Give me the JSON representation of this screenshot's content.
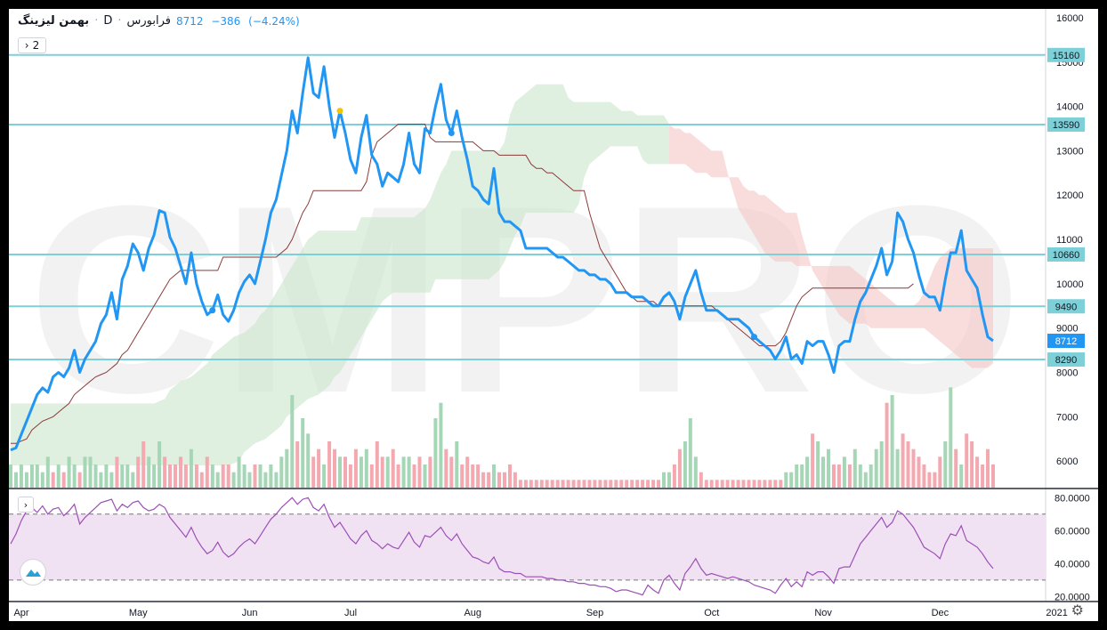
{
  "legend": {
    "symbol": "بهمن لیزینگ",
    "interval": "D",
    "exchange": "فرابورس",
    "last": "8712",
    "change": "−386",
    "change_pct": "(−4.24%)"
  },
  "collapse_button": "2",
  "watermark": "CMPRO",
  "colors": {
    "price": "#2196f3",
    "hline": "#7ed0d8",
    "kijun": "#8b3a3a",
    "cloud_bull": "#c9e6cc",
    "cloud_bear": "#f5c6c6",
    "vol_up": "#a5d6b5",
    "vol_down": "#f4a9b0",
    "rsi": "#9c4fb5",
    "rsi_band": "#f1e2f3"
  },
  "chart_data": [
    {
      "type": "line",
      "name": "price",
      "x_axis_labels": [
        "Apr",
        "May",
        "Jun",
        "Jul",
        "Aug",
        "Sep",
        "Oct",
        "Nov",
        "Dec",
        "2021"
      ],
      "x_axis_positions": [
        0,
        22,
        43,
        62,
        85,
        108,
        130,
        151,
        173,
        195
      ],
      "ylim": [
        5400,
        16200
      ],
      "yticks": [
        6000,
        7000,
        8000,
        9000,
        10000,
        11000,
        12000,
        13000,
        14000,
        15000,
        16000
      ],
      "price_labels": [
        "15160",
        "13590",
        "10660",
        "9490",
        "8712",
        "8290"
      ],
      "horizontal_levels": [
        15160,
        13590,
        10660,
        9490,
        8290
      ],
      "last_price": 8712,
      "series": [
        {
          "name": "close",
          "values": [
            6250,
            6300,
            6600,
            6900,
            7200,
            7500,
            7650,
            7550,
            7900,
            8000,
            7900,
            8100,
            8500,
            8000,
            8300,
            8500,
            8700,
            9100,
            9300,
            9800,
            9200,
            10100,
            10400,
            10900,
            10700,
            10300,
            10800,
            11100,
            11650,
            11600,
            11050,
            10800,
            10400,
            10000,
            10700,
            10000,
            9600,
            9300,
            9400,
            9750,
            9300,
            9150,
            9400,
            9800,
            10050,
            10200,
            10000,
            10500,
            11000,
            11600,
            11900,
            12450,
            13000,
            13900,
            13400,
            14300,
            15100,
            14300,
            14200,
            14900,
            14000,
            13300,
            13900,
            13400,
            12800,
            12500,
            13300,
            13800,
            12900,
            12700,
            12200,
            12500,
            12400,
            12300,
            12700,
            13400,
            12700,
            12500,
            13500,
            13400,
            14000,
            14500,
            13700,
            13400,
            13900,
            13300,
            12800,
            12200,
            12100,
            11900,
            11800,
            12600,
            11600,
            11400,
            11400,
            11300,
            11200,
            10800,
            10800,
            10800,
            10800,
            10800,
            10700,
            10600,
            10600,
            10500,
            10400,
            10300,
            10300,
            10200,
            10200,
            10100,
            10100,
            10000,
            9800,
            9800,
            9800,
            9700,
            9700,
            9700,
            9600,
            9500,
            9500,
            9700,
            9800,
            9600,
            9200,
            9700,
            10000,
            10300,
            9800,
            9400,
            9400,
            9400,
            9300,
            9200,
            9200,
            9200,
            9100,
            9000,
            8800,
            8700,
            8600,
            8500,
            8300,
            8500,
            8800,
            8300,
            8400,
            8200,
            8700,
            8600,
            8700,
            8700,
            8400,
            8000,
            8600,
            8700,
            8700,
            9200,
            9600,
            9800,
            10100,
            10400,
            10800,
            10200,
            10500,
            11600,
            11400,
            11000,
            10700,
            10200,
            9800,
            9700,
            9700,
            9400,
            10100,
            10700,
            10700,
            11200,
            10300,
            10100,
            9900,
            9300,
            8800,
            8712
          ]
        },
        {
          "name": "kijun",
          "values": [
            6400,
            6400,
            6450,
            6500,
            6700,
            6800,
            6900,
            6950,
            7000,
            7100,
            7200,
            7300,
            7500,
            7600,
            7700,
            7800,
            7900,
            7950,
            8000,
            8100,
            8200,
            8400,
            8500,
            8700,
            8900,
            9100,
            9300,
            9500,
            9700,
            9900,
            10100,
            10200,
            10300,
            10300,
            10300,
            10300,
            10300,
            10300,
            10300,
            10300,
            10600,
            10600,
            10600,
            10600,
            10600,
            10600,
            10600,
            10600,
            10600,
            10600,
            10600,
            10700,
            10800,
            11000,
            11300,
            11600,
            11800,
            12100,
            12100,
            12100,
            12100,
            12100,
            12100,
            12100,
            12100,
            12100,
            12100,
            12300,
            12900,
            13200,
            13300,
            13400,
            13500,
            13600,
            13600,
            13600,
            13600,
            13600,
            13600,
            13300,
            13200,
            13200,
            13200,
            13200,
            13200,
            13200,
            13200,
            13200,
            13100,
            13000,
            13000,
            13000,
            12900,
            12900,
            12900,
            12900,
            12900,
            12900,
            12700,
            12600,
            12600,
            12500,
            12500,
            12400,
            12300,
            12200,
            12100,
            12100,
            12100,
            11600,
            11200,
            10800,
            10600,
            10400,
            10200,
            10000,
            9800,
            9700,
            9600,
            9600,
            9600,
            9600,
            9500,
            9500,
            9500,
            9500,
            9500,
            9500,
            9500,
            9500,
            9500,
            9500,
            9500,
            9400,
            9300,
            9200,
            9100,
            9000,
            8900,
            8800,
            8700,
            8600,
            8600,
            8600,
            8600,
            8700,
            8900,
            9200,
            9500,
            9700,
            9800,
            9900,
            9900,
            9900,
            9900,
            9900,
            9900,
            9900,
            9900,
            9900,
            9900,
            9900,
            9900,
            9900,
            9900,
            9900,
            9900,
            9900,
            9900,
            9900,
            10000
          ]
        }
      ]
    },
    {
      "type": "line",
      "name": "RSI",
      "ylim": [
        17,
        85
      ],
      "yticks": [
        "80.0000",
        "60.0000",
        "40.0000",
        "20.0000"
      ],
      "ytick_values": [
        80,
        60,
        40,
        20
      ],
      "band": [
        30,
        70
      ],
      "series": [
        {
          "name": "rsi",
          "values": [
            52,
            58,
            66,
            72,
            74,
            71,
            75,
            70,
            73,
            74,
            69,
            72,
            76,
            64,
            68,
            71,
            74,
            77,
            78,
            79,
            72,
            76,
            74,
            77,
            78,
            74,
            72,
            73,
            76,
            74,
            68,
            64,
            60,
            56,
            62,
            55,
            50,
            46,
            48,
            53,
            47,
            44,
            46,
            50,
            53,
            55,
            52,
            57,
            62,
            67,
            70,
            74,
            77,
            80,
            76,
            79,
            80,
            74,
            72,
            76,
            68,
            62,
            65,
            60,
            55,
            52,
            57,
            60,
            54,
            52,
            49,
            52,
            50,
            49,
            54,
            59,
            53,
            50,
            57,
            56,
            59,
            62,
            57,
            54,
            58,
            52,
            48,
            44,
            43,
            41,
            40,
            44,
            37,
            35,
            35,
            34,
            34,
            32,
            32,
            32,
            32,
            31,
            31,
            30,
            30,
            29,
            29,
            28,
            28,
            27,
            27,
            26,
            26,
            25,
            23,
            24,
            24,
            23,
            22,
            21,
            27,
            24,
            22,
            30,
            33,
            28,
            24,
            34,
            38,
            43,
            37,
            33,
            34,
            33,
            32,
            31,
            32,
            31,
            30,
            29,
            27,
            26,
            25,
            24,
            22,
            27,
            31,
            26,
            29,
            26,
            35,
            33,
            35,
            35,
            32,
            28,
            37,
            38,
            38,
            45,
            52,
            56,
            60,
            64,
            68,
            62,
            65,
            72,
            70,
            66,
            62,
            56,
            50,
            48,
            46,
            43,
            52,
            58,
            57,
            63,
            54,
            52,
            50,
            46,
            41,
            37
          ]
        }
      ]
    },
    {
      "type": "bar",
      "name": "volume",
      "volumes": [
        3,
        2,
        3,
        2,
        3,
        3,
        2,
        4,
        2,
        3,
        2,
        4,
        3,
        2,
        4,
        4,
        3,
        2,
        3,
        2,
        4,
        3,
        3,
        2,
        4,
        6,
        4,
        3,
        6,
        4,
        3,
        3,
        4,
        3,
        5,
        3,
        2,
        4,
        3,
        2,
        3,
        3,
        2,
        4,
        3,
        2,
        3,
        3,
        2,
        3,
        2,
        4,
        5,
        12,
        6,
        9,
        7,
        4,
        5,
        3,
        6,
        5,
        4,
        4,
        3,
        5,
        4,
        5,
        3,
        6,
        4,
        4,
        5,
        3,
        4,
        4,
        3,
        4,
        3,
        4,
        9,
        11,
        5,
        4,
        6,
        3,
        4,
        3,
        3,
        2,
        2,
        3,
        2,
        2,
        3,
        2,
        1,
        1,
        1,
        1,
        1,
        1,
        1,
        1,
        1,
        1,
        1,
        1,
        1,
        1,
        1,
        1,
        1,
        1,
        1,
        1,
        1,
        1,
        1,
        1,
        1,
        1,
        1,
        2,
        2,
        3,
        5,
        6,
        9,
        4,
        2,
        1,
        1,
        1,
        1,
        1,
        1,
        1,
        1,
        1,
        1,
        1,
        1,
        1,
        1,
        1,
        2,
        2,
        3,
        3,
        4,
        7,
        6,
        4,
        5,
        3,
        3,
        4,
        3,
        5,
        3,
        2,
        3,
        5,
        6,
        11,
        12,
        5,
        7,
        6,
        5,
        4,
        3,
        2,
        2,
        4,
        6,
        13,
        5,
        3,
        7,
        6,
        4,
        3,
        5,
        3
      ],
      "directions": [
        1,
        1,
        1,
        1,
        1,
        1,
        1,
        1,
        0,
        1,
        0,
        1,
        1,
        0,
        1,
        1,
        1,
        1,
        1,
        1,
        0,
        1,
        1,
        1,
        0,
        0,
        1,
        1,
        1,
        0,
        0,
        0,
        0,
        0,
        1,
        0,
        0,
        0,
        1,
        1,
        0,
        0,
        1,
        1,
        1,
        1,
        0,
        1,
        1,
        1,
        1,
        1,
        1,
        1,
        0,
        1,
        1,
        0,
        0,
        1,
        0,
        0,
        1,
        0,
        0,
        0,
        1,
        1,
        0,
        0,
        0,
        1,
        0,
        0,
        1,
        1,
        0,
        0,
        1,
        0,
        1,
        1,
        0,
        0,
        1,
        0,
        0,
        0,
        0,
        0,
        0,
        1,
        0,
        0,
        0,
        0,
        0,
        0,
        0,
        0,
        0,
        0,
        0,
        0,
        0,
        0,
        0,
        0,
        0,
        0,
        0,
        0,
        0,
        0,
        0,
        0,
        0,
        0,
        0,
        0,
        0,
        0,
        0,
        1,
        1,
        0,
        0,
        1,
        1,
        1,
        0,
        0,
        0,
        0,
        0,
        0,
        0,
        0,
        0,
        0,
        0,
        0,
        0,
        0,
        0,
        0,
        1,
        1,
        1,
        1,
        1,
        0,
        1,
        1,
        1,
        0,
        0,
        1,
        0,
        1,
        1,
        1,
        1,
        1,
        1,
        0,
        1,
        1,
        0,
        0,
        0,
        0,
        0,
        0,
        0,
        0,
        1,
        1,
        0,
        1,
        0,
        0,
        0,
        0,
        0,
        0
      ]
    }
  ]
}
